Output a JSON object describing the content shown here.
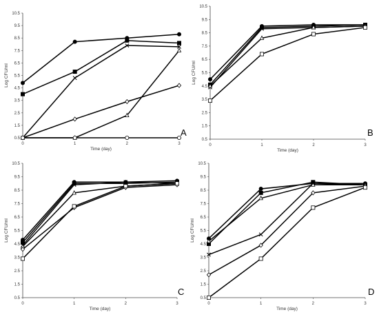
{
  "figure": {
    "x_title": "Time (day)",
    "y_title": "Log CFU/ml"
  },
  "chart_data": [
    {
      "panel": "A",
      "type": "line",
      "x": [
        0,
        1,
        2,
        3
      ],
      "xlabel": "Time (day)",
      "ylabel": "Log CFU/ml",
      "xticks": [
        "0",
        "1",
        "2",
        "3"
      ],
      "yticks": [
        "0.5",
        "1.5",
        "2.5",
        "3.5",
        "4.5",
        "5.5",
        "6.5",
        "7.5",
        "8.5",
        "9.5",
        "10.5"
      ],
      "ylim": [
        0.5,
        10.5
      ],
      "series": [
        {
          "marker": "circle-filled",
          "values": [
            4.9,
            8.2,
            8.5,
            8.8
          ]
        },
        {
          "marker": "square-filled",
          "values": [
            4.0,
            5.8,
            8.3,
            8.1
          ]
        },
        {
          "marker": "x",
          "values": [
            0.5,
            5.3,
            7.9,
            7.8
          ]
        },
        {
          "marker": "triangle-open",
          "values": [
            0.5,
            0.5,
            2.3,
            7.5
          ]
        },
        {
          "marker": "diamond-open",
          "values": [
            0.5,
            2.0,
            3.4,
            4.7
          ]
        },
        {
          "marker": "circle-open",
          "values": [
            0.5,
            0.5,
            0.5,
            0.5
          ]
        }
      ]
    },
    {
      "panel": "B",
      "type": "line",
      "x": [
        0,
        1,
        2,
        3
      ],
      "xlabel": "Time (day)",
      "ylabel": "Log CFU/ml",
      "xticks": [
        "0",
        "1",
        "2",
        "3"
      ],
      "yticks": [
        "0.5",
        "1.5",
        "2.5",
        "3.5",
        "4.5",
        "5.5",
        "6.5",
        "7.5",
        "8.5",
        "9.5",
        "10.5"
      ],
      "ylim": [
        0.5,
        10.5
      ],
      "series": [
        {
          "marker": "circle-filled",
          "values": [
            5.0,
            9.0,
            9.1,
            9.1
          ]
        },
        {
          "marker": "square-filled",
          "values": [
            4.6,
            8.9,
            9.0,
            9.1
          ]
        },
        {
          "marker": "x",
          "values": [
            4.4,
            8.8,
            8.9,
            9.0
          ]
        },
        {
          "marker": "triangle-open",
          "values": [
            4.5,
            8.1,
            8.9,
            9.0
          ]
        },
        {
          "marker": "square-open",
          "values": [
            3.4,
            6.9,
            8.4,
            8.9
          ]
        }
      ]
    },
    {
      "panel": "C",
      "type": "line",
      "x": [
        0,
        1,
        2,
        3
      ],
      "xlabel": "Time (day)",
      "ylabel": "Log CFU/ml",
      "xticks": [
        "0",
        "1",
        "2",
        "3"
      ],
      "yticks": [
        "0.5",
        "1.5",
        "2.5",
        "3.5",
        "4.5",
        "5.5",
        "6.5",
        "7.5",
        "8.5",
        "9.5",
        "10.5"
      ],
      "ylim": [
        0.5,
        10.5
      ],
      "series": [
        {
          "marker": "circle-filled",
          "values": [
            4.8,
            9.1,
            9.1,
            9.2
          ]
        },
        {
          "marker": "square-filled",
          "values": [
            4.6,
            9.0,
            9.0,
            9.1
          ]
        },
        {
          "marker": "x",
          "values": [
            4.4,
            8.9,
            9.1,
            9.0
          ]
        },
        {
          "marker": "triangle-open",
          "values": [
            4.3,
            8.3,
            8.8,
            9.0
          ]
        },
        {
          "marker": "diamond-open",
          "values": [
            4.1,
            7.2,
            8.7,
            8.9
          ]
        },
        {
          "marker": "square-open",
          "values": [
            3.4,
            7.3,
            8.8,
            9.0
          ]
        }
      ]
    },
    {
      "panel": "D",
      "type": "line",
      "x": [
        0,
        1,
        2,
        3
      ],
      "xlabel": "Time (day)",
      "ylabel": "Log CFU/ml",
      "xticks": [
        "0",
        "1",
        "2",
        "3"
      ],
      "yticks": [
        "0.5",
        "1.5",
        "2.5",
        "3.5",
        "4.5",
        "5.5",
        "6.5",
        "7.5",
        "8.5",
        "9.5",
        "10.5"
      ],
      "ylim": [
        0.5,
        10.5
      ],
      "series": [
        {
          "marker": "circle-filled",
          "values": [
            4.9,
            8.6,
            9.0,
            9.0
          ]
        },
        {
          "marker": "square-filled",
          "values": [
            4.5,
            8.3,
            9.1,
            8.9
          ]
        },
        {
          "marker": "triangle-open",
          "values": [
            4.7,
            7.9,
            8.9,
            8.9
          ]
        },
        {
          "marker": "x",
          "values": [
            3.7,
            5.2,
            9.0,
            8.9
          ]
        },
        {
          "marker": "diamond-open",
          "values": [
            2.2,
            4.4,
            8.3,
            8.8
          ]
        },
        {
          "marker": "square-open",
          "values": [
            0.5,
            3.4,
            7.2,
            8.7
          ]
        }
      ]
    }
  ]
}
